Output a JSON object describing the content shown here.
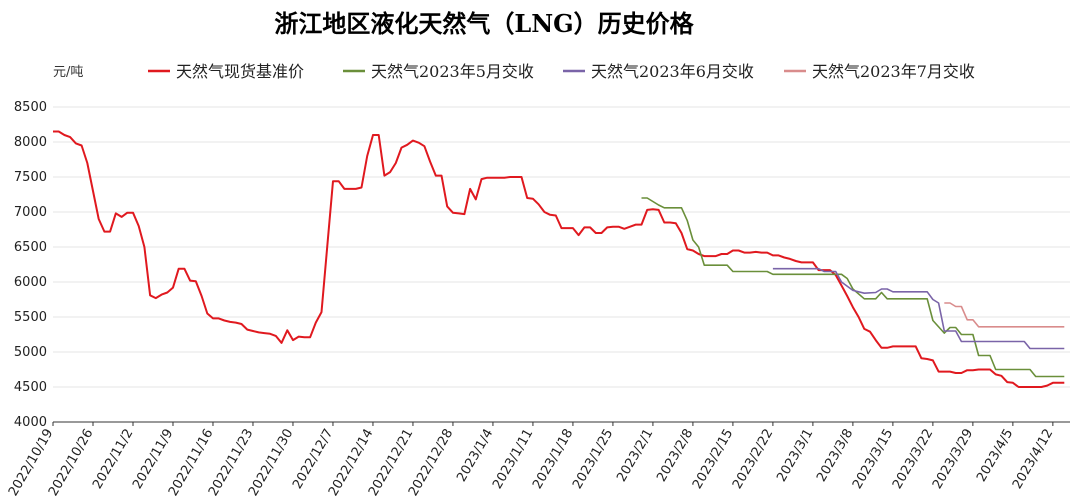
{
  "chart_data": {
    "type": "line",
    "title": "浙江地区液化天然气（LNG）历史价格",
    "ylabel": "元/吨",
    "ylim": [
      4000,
      8500
    ],
    "yticks": [
      4000,
      4500,
      5000,
      5500,
      6000,
      6500,
      7000,
      7500,
      8000,
      8500
    ],
    "xlim": [
      "2022-10-19",
      "2023-04-15"
    ],
    "xticks": [
      "2022/10/19",
      "2022/10/26",
      "2022/11/2",
      "2022/11/9",
      "2022/11/16",
      "2022/11/23",
      "2022/11/30",
      "2022/12/7",
      "2022/12/14",
      "2022/12/21",
      "2022/12/28",
      "2023/1/4",
      "2023/1/11",
      "2023/1/18",
      "2023/1/25",
      "2023/2/1",
      "2023/2/8",
      "2023/2/15",
      "2023/2/22",
      "2023/3/1",
      "2023/3/8",
      "2023/3/15",
      "2023/3/22",
      "2023/3/29",
      "2023/4/5",
      "2023/4/12"
    ],
    "grid": true,
    "legend_position": "top",
    "series": [
      {
        "name": "天然气现货基准价",
        "color": "#e0191f",
        "points": [
          [
            "2022-10-19",
            8150
          ],
          [
            "2022-10-20",
            8150
          ],
          [
            "2022-10-21",
            8100
          ],
          [
            "2022-10-22",
            8070
          ],
          [
            "2022-10-23",
            7980
          ],
          [
            "2022-10-24",
            7950
          ],
          [
            "2022-10-25",
            7700
          ],
          [
            "2022-10-26",
            7300
          ],
          [
            "2022-10-27",
            6900
          ],
          [
            "2022-10-28",
            6720
          ],
          [
            "2022-10-29",
            6720
          ],
          [
            "2022-10-30",
            6980
          ],
          [
            "2022-10-31",
            6930
          ],
          [
            "2022-11-01",
            6990
          ],
          [
            "2022-11-02",
            6990
          ],
          [
            "2022-11-03",
            6800
          ],
          [
            "2022-11-04",
            6500
          ],
          [
            "2022-11-05",
            5810
          ],
          [
            "2022-11-06",
            5770
          ],
          [
            "2022-11-07",
            5820
          ],
          [
            "2022-11-08",
            5850
          ],
          [
            "2022-11-09",
            5920
          ],
          [
            "2022-11-10",
            6190
          ],
          [
            "2022-11-11",
            6190
          ],
          [
            "2022-11-12",
            6020
          ],
          [
            "2022-11-13",
            6010
          ],
          [
            "2022-11-14",
            5800
          ],
          [
            "2022-11-15",
            5550
          ],
          [
            "2022-11-16",
            5480
          ],
          [
            "2022-11-17",
            5480
          ],
          [
            "2022-11-18",
            5450
          ],
          [
            "2022-11-19",
            5430
          ],
          [
            "2022-11-20",
            5420
          ],
          [
            "2022-11-21",
            5400
          ],
          [
            "2022-11-22",
            5320
          ],
          [
            "2022-11-23",
            5300
          ],
          [
            "2022-11-24",
            5280
          ],
          [
            "2022-11-25",
            5270
          ],
          [
            "2022-11-26",
            5260
          ],
          [
            "2022-11-27",
            5230
          ],
          [
            "2022-11-28",
            5130
          ],
          [
            "2022-11-29",
            5310
          ],
          [
            "2022-11-30",
            5170
          ],
          [
            "2022-12-01",
            5220
          ],
          [
            "2022-12-02",
            5210
          ],
          [
            "2022-12-03",
            5210
          ],
          [
            "2022-12-04",
            5420
          ],
          [
            "2022-12-05",
            5570
          ],
          [
            "2022-12-06",
            6500
          ],
          [
            "2022-12-07",
            7440
          ],
          [
            "2022-12-08",
            7440
          ],
          [
            "2022-12-09",
            7330
          ],
          [
            "2022-12-10",
            7330
          ],
          [
            "2022-12-11",
            7330
          ],
          [
            "2022-12-12",
            7350
          ],
          [
            "2022-12-13",
            7800
          ],
          [
            "2022-12-14",
            8100
          ],
          [
            "2022-12-15",
            8100
          ],
          [
            "2022-12-16",
            7520
          ],
          [
            "2022-12-17",
            7570
          ],
          [
            "2022-12-18",
            7700
          ],
          [
            "2022-12-19",
            7920
          ],
          [
            "2022-12-20",
            7960
          ],
          [
            "2022-12-21",
            8020
          ],
          [
            "2022-12-22",
            7990
          ],
          [
            "2022-12-23",
            7940
          ],
          [
            "2022-12-24",
            7720
          ],
          [
            "2022-12-25",
            7520
          ],
          [
            "2022-12-26",
            7520
          ],
          [
            "2022-12-27",
            7080
          ],
          [
            "2022-12-28",
            6990
          ],
          [
            "2022-12-29",
            6980
          ],
          [
            "2022-12-30",
            6970
          ],
          [
            "2022-12-31",
            7330
          ],
          [
            "2023-01-01",
            7180
          ],
          [
            "2023-01-02",
            7470
          ],
          [
            "2023-01-03",
            7490
          ],
          [
            "2023-01-04",
            7490
          ],
          [
            "2023-01-05",
            7490
          ],
          [
            "2023-01-06",
            7490
          ],
          [
            "2023-01-07",
            7500
          ],
          [
            "2023-01-08",
            7500
          ],
          [
            "2023-01-09",
            7500
          ],
          [
            "2023-01-10",
            7200
          ],
          [
            "2023-01-11",
            7190
          ],
          [
            "2023-01-12",
            7110
          ],
          [
            "2023-01-13",
            7000
          ],
          [
            "2023-01-14",
            6960
          ],
          [
            "2023-01-15",
            6950
          ],
          [
            "2023-01-16",
            6770
          ],
          [
            "2023-01-17",
            6770
          ],
          [
            "2023-01-18",
            6770
          ],
          [
            "2023-01-19",
            6670
          ],
          [
            "2023-01-20",
            6780
          ],
          [
            "2023-01-21",
            6780
          ],
          [
            "2023-01-22",
            6700
          ],
          [
            "2023-01-23",
            6700
          ],
          [
            "2023-01-24",
            6780
          ],
          [
            "2023-01-25",
            6790
          ],
          [
            "2023-01-26",
            6790
          ],
          [
            "2023-01-27",
            6760
          ],
          [
            "2023-01-28",
            6790
          ],
          [
            "2023-01-29",
            6820
          ],
          [
            "2023-01-30",
            6820
          ],
          [
            "2023-01-31",
            7030
          ],
          [
            "2023-02-01",
            7040
          ],
          [
            "2023-02-02",
            7030
          ],
          [
            "2023-02-03",
            6850
          ],
          [
            "2023-02-04",
            6850
          ],
          [
            "2023-02-05",
            6840
          ],
          [
            "2023-02-06",
            6700
          ],
          [
            "2023-02-07",
            6470
          ],
          [
            "2023-02-08",
            6450
          ],
          [
            "2023-02-09",
            6400
          ],
          [
            "2023-02-10",
            6370
          ],
          [
            "2023-02-11",
            6370
          ],
          [
            "2023-02-12",
            6370
          ],
          [
            "2023-02-13",
            6400
          ],
          [
            "2023-02-14",
            6400
          ],
          [
            "2023-02-15",
            6450
          ],
          [
            "2023-02-16",
            6450
          ],
          [
            "2023-02-17",
            6420
          ],
          [
            "2023-02-18",
            6420
          ],
          [
            "2023-02-19",
            6430
          ],
          [
            "2023-02-20",
            6420
          ],
          [
            "2023-02-21",
            6420
          ],
          [
            "2023-02-22",
            6380
          ],
          [
            "2023-02-23",
            6380
          ],
          [
            "2023-02-24",
            6350
          ],
          [
            "2023-02-25",
            6330
          ],
          [
            "2023-02-26",
            6300
          ],
          [
            "2023-02-27",
            6280
          ],
          [
            "2023-02-28",
            6280
          ],
          [
            "2023-03-01",
            6280
          ],
          [
            "2023-03-02",
            6170
          ],
          [
            "2023-03-03",
            6170
          ],
          [
            "2023-03-04",
            6170
          ],
          [
            "2023-03-05",
            6100
          ],
          [
            "2023-03-06",
            5950
          ],
          [
            "2023-03-07",
            5800
          ],
          [
            "2023-03-08",
            5640
          ],
          [
            "2023-03-09",
            5500
          ],
          [
            "2023-03-10",
            5330
          ],
          [
            "2023-03-11",
            5290
          ],
          [
            "2023-03-12",
            5170
          ],
          [
            "2023-03-13",
            5060
          ],
          [
            "2023-03-14",
            5060
          ],
          [
            "2023-03-15",
            5080
          ],
          [
            "2023-03-16",
            5080
          ],
          [
            "2023-03-17",
            5080
          ],
          [
            "2023-03-18",
            5080
          ],
          [
            "2023-03-19",
            5080
          ],
          [
            "2023-03-20",
            4910
          ],
          [
            "2023-03-21",
            4900
          ],
          [
            "2023-03-22",
            4880
          ],
          [
            "2023-03-23",
            4720
          ],
          [
            "2023-03-24",
            4720
          ],
          [
            "2023-03-25",
            4720
          ],
          [
            "2023-03-26",
            4700
          ],
          [
            "2023-03-27",
            4700
          ],
          [
            "2023-03-28",
            4740
          ],
          [
            "2023-03-29",
            4740
          ],
          [
            "2023-03-30",
            4750
          ],
          [
            "2023-03-31",
            4750
          ],
          [
            "2023-04-01",
            4750
          ],
          [
            "2023-04-02",
            4680
          ],
          [
            "2023-04-03",
            4660
          ],
          [
            "2023-04-04",
            4570
          ],
          [
            "2023-04-05",
            4560
          ],
          [
            "2023-04-06",
            4500
          ],
          [
            "2023-04-07",
            4500
          ],
          [
            "2023-04-08",
            4500
          ],
          [
            "2023-04-09",
            4500
          ],
          [
            "2023-04-10",
            4500
          ],
          [
            "2023-04-11",
            4520
          ],
          [
            "2023-04-12",
            4560
          ],
          [
            "2023-04-13",
            4560
          ],
          [
            "2023-04-14",
            4560
          ]
        ]
      },
      {
        "name": "天然气2023年5月交收",
        "color": "#6a8f3a",
        "points": [
          [
            "2023-01-30",
            7200
          ],
          [
            "2023-01-31",
            7200
          ],
          [
            "2023-02-01",
            7150
          ],
          [
            "2023-02-02",
            7100
          ],
          [
            "2023-02-03",
            7060
          ],
          [
            "2023-02-06",
            7060
          ],
          [
            "2023-02-07",
            6880
          ],
          [
            "2023-02-08",
            6600
          ],
          [
            "2023-02-09",
            6500
          ],
          [
            "2023-02-10",
            6240
          ],
          [
            "2023-02-14",
            6240
          ],
          [
            "2023-02-15",
            6150
          ],
          [
            "2023-02-21",
            6150
          ],
          [
            "2023-02-22",
            6110
          ],
          [
            "2023-03-06",
            6110
          ],
          [
            "2023-03-07",
            6050
          ],
          [
            "2023-03-08",
            5900
          ],
          [
            "2023-03-10",
            5760
          ],
          [
            "2023-03-12",
            5760
          ],
          [
            "2023-03-13",
            5850
          ],
          [
            "2023-03-14",
            5760
          ],
          [
            "2023-03-21",
            5760
          ],
          [
            "2023-03-22",
            5450
          ],
          [
            "2023-03-24",
            5270
          ],
          [
            "2023-03-25",
            5350
          ],
          [
            "2023-03-26",
            5350
          ],
          [
            "2023-03-27",
            5250
          ],
          [
            "2023-03-29",
            5250
          ],
          [
            "2023-03-30",
            4950
          ],
          [
            "2023-04-01",
            4950
          ],
          [
            "2023-04-02",
            4750
          ],
          [
            "2023-04-08",
            4750
          ],
          [
            "2023-04-09",
            4650
          ],
          [
            "2023-04-14",
            4650
          ]
        ]
      },
      {
        "name": "天然气2023年6月交收",
        "color": "#7a64a8",
        "points": [
          [
            "2023-02-22",
            6190
          ],
          [
            "2023-03-02",
            6190
          ],
          [
            "2023-03-03",
            6150
          ],
          [
            "2023-03-05",
            6150
          ],
          [
            "2023-03-06",
            6000
          ],
          [
            "2023-03-08",
            5880
          ],
          [
            "2023-03-10",
            5840
          ],
          [
            "2023-03-12",
            5850
          ],
          [
            "2023-03-13",
            5900
          ],
          [
            "2023-03-14",
            5900
          ],
          [
            "2023-03-15",
            5860
          ],
          [
            "2023-03-21",
            5860
          ],
          [
            "2023-03-22",
            5750
          ],
          [
            "2023-03-23",
            5700
          ],
          [
            "2023-03-24",
            5300
          ],
          [
            "2023-03-26",
            5300
          ],
          [
            "2023-03-27",
            5150
          ],
          [
            "2023-04-07",
            5150
          ],
          [
            "2023-04-08",
            5050
          ],
          [
            "2023-04-14",
            5050
          ]
        ]
      },
      {
        "name": "天然气2023年7月交收",
        "color": "#d98c8c",
        "points": [
          [
            "2023-03-24",
            5700
          ],
          [
            "2023-03-25",
            5700
          ],
          [
            "2023-03-26",
            5650
          ],
          [
            "2023-03-27",
            5650
          ],
          [
            "2023-03-28",
            5460
          ],
          [
            "2023-03-29",
            5460
          ],
          [
            "2023-03-30",
            5360
          ],
          [
            "2023-04-14",
            5360
          ]
        ]
      }
    ]
  }
}
